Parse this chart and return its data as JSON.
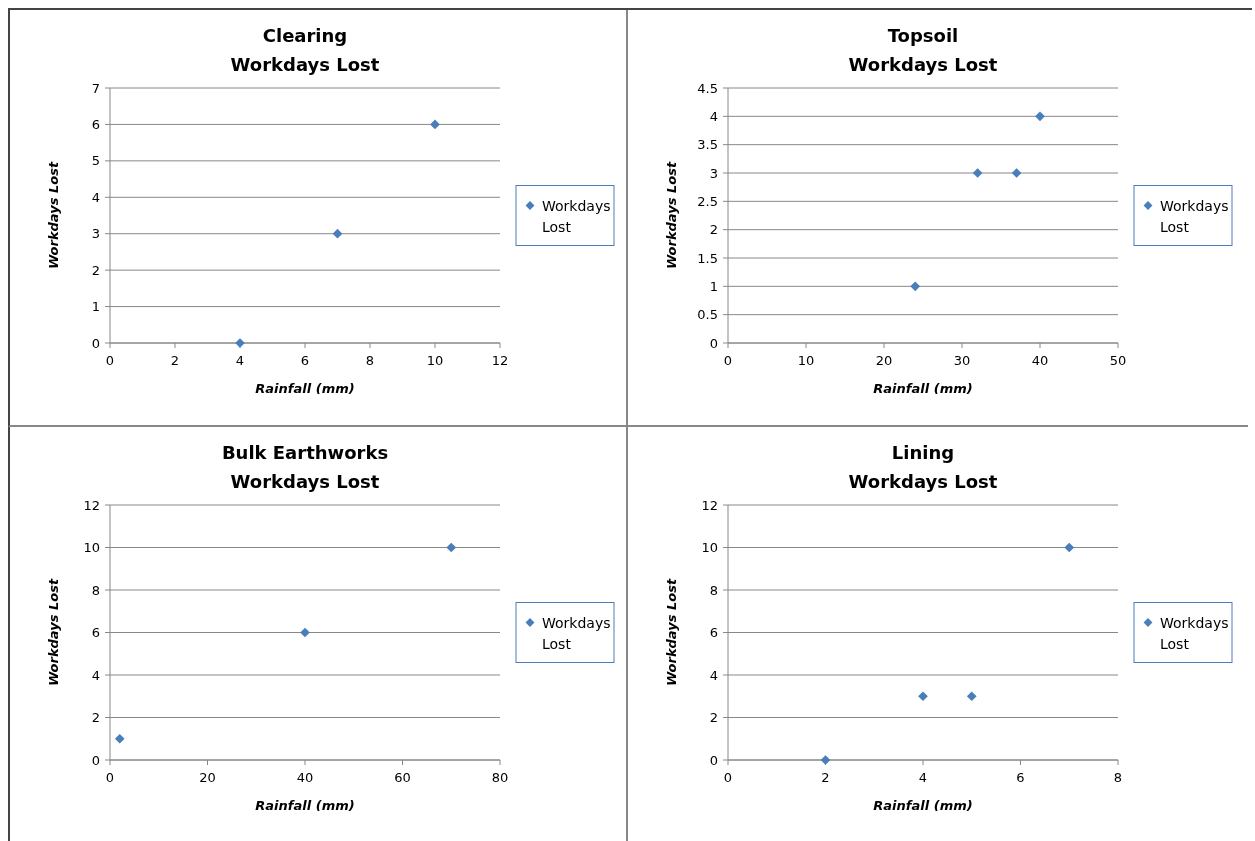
{
  "chart_data": [
    {
      "type": "scatter",
      "title": "Clearing",
      "subtitle": "Workdays Lost",
      "xlabel": "Rainfall  (mm)",
      "ylabel": "Workdays Lost",
      "xlim": [
        0,
        12
      ],
      "xticks": [
        0,
        2,
        4,
        6,
        8,
        10,
        12
      ],
      "ylim": [
        0,
        7
      ],
      "yticks": [
        0,
        1,
        2,
        3,
        4,
        5,
        6,
        7
      ],
      "grid": "y",
      "legend": "right",
      "marker": "diamond",
      "series": [
        {
          "name": "Workdays Lost",
          "color": "#4a7ebb",
          "x": [
            4,
            7,
            10
          ],
          "values": [
            0,
            3,
            6
          ]
        }
      ]
    },
    {
      "type": "scatter",
      "title": "Topsoil",
      "subtitle": "Workdays Lost",
      "xlabel": "Rainfall  (mm)",
      "ylabel": "Workdays Lost",
      "xlim": [
        0,
        50
      ],
      "xticks": [
        0,
        10,
        20,
        30,
        40,
        50
      ],
      "ylim": [
        0,
        4.5
      ],
      "yticks": [
        0,
        0.5,
        1,
        1.5,
        2,
        2.5,
        3,
        3.5,
        4,
        4.5
      ],
      "grid": "y",
      "legend": "right",
      "marker": "diamond",
      "series": [
        {
          "name": "Workdays Lost",
          "color": "#4a7ebb",
          "x": [
            24,
            32,
            37,
            40
          ],
          "values": [
            1,
            3,
            3,
            4
          ]
        }
      ]
    },
    {
      "type": "scatter",
      "title": "Bulk Earthworks",
      "subtitle": "Workdays Lost",
      "xlabel": "Rainfall  (mm)",
      "ylabel": "Workdays Lost",
      "xlim": [
        0,
        80
      ],
      "xticks": [
        0,
        20,
        40,
        60,
        80
      ],
      "ylim": [
        0,
        12
      ],
      "yticks": [
        0,
        2,
        4,
        6,
        8,
        10,
        12
      ],
      "grid": "y",
      "legend": "right",
      "marker": "diamond",
      "series": [
        {
          "name": "Workdays Lost",
          "color": "#4a7ebb",
          "x": [
            2,
            40,
            70
          ],
          "values": [
            1,
            6,
            10
          ]
        }
      ]
    },
    {
      "type": "scatter",
      "title": "Lining",
      "subtitle": "Workdays Lost",
      "xlabel": "Rainfall  (mm)",
      "ylabel": "Workdays Lost",
      "xlim": [
        0,
        8
      ],
      "xticks": [
        0,
        2,
        4,
        6,
        8
      ],
      "ylim": [
        0,
        12
      ],
      "yticks": [
        0,
        2,
        4,
        6,
        8,
        10,
        12
      ],
      "grid": "y",
      "legend": "right",
      "marker": "diamond",
      "series": [
        {
          "name": "Workdays Lost",
          "color": "#4a7ebb",
          "x": [
            2,
            4,
            5,
            7
          ],
          "values": [
            0,
            3,
            3,
            10
          ]
        }
      ]
    }
  ]
}
